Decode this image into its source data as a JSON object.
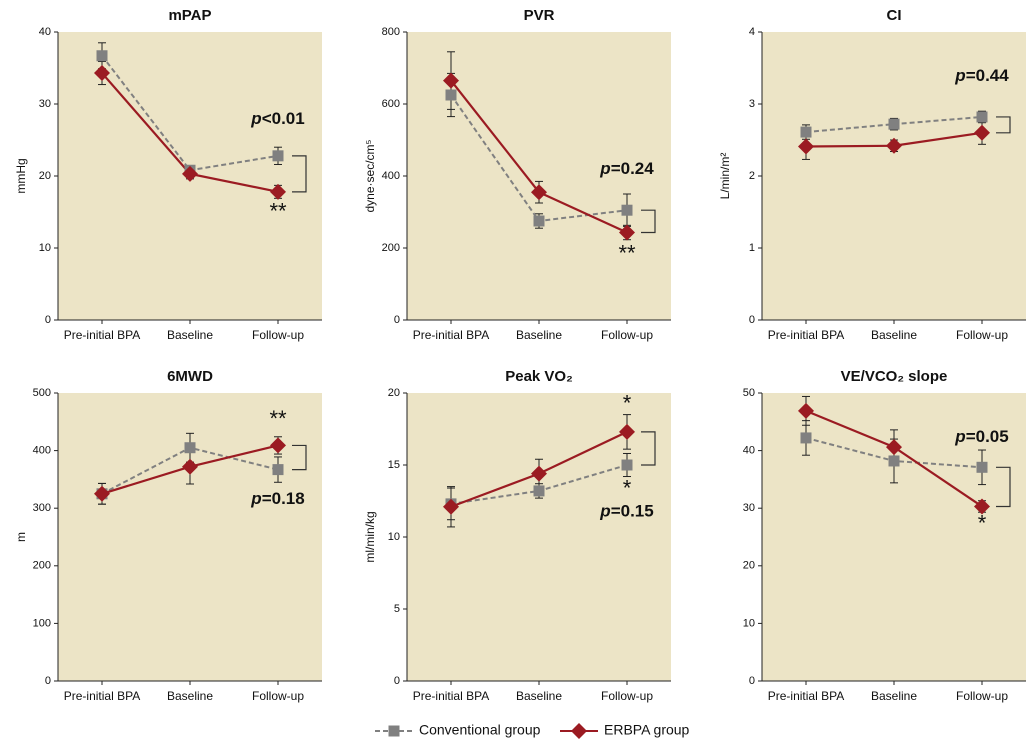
{
  "chart_data": [
    {
      "type": "line",
      "title": "mPAP",
      "y_label": "mmHg",
      "categories": [
        "Pre-initial BPA",
        "Baseline",
        "Follow-up"
      ],
      "ylim": [
        0,
        40
      ],
      "yticks": [
        0,
        10,
        20,
        30,
        40
      ],
      "series": [
        {
          "name": "Conventional group",
          "color": "#808080",
          "values": [
            36.7,
            20.8,
            22.8
          ],
          "errors": [
            1.8,
            0.6,
            1.2
          ]
        },
        {
          "name": "ERBPA group",
          "color": "#9b1b22",
          "values": [
            34.3,
            20.3,
            17.8
          ],
          "errors": [
            1.6,
            0.7,
            0.9
          ]
        }
      ],
      "annotations": [
        {
          "text": "p<0.01",
          "y": 27.8
        },
        {
          "text": "**",
          "y": 14.9
        }
      ]
    },
    {
      "type": "line",
      "title": "PVR",
      "y_label": "dyne·sec/cm⁵",
      "categories": [
        "Pre-initial BPA",
        "Baseline",
        "Follow-up"
      ],
      "ylim": [
        0,
        800
      ],
      "yticks": [
        0,
        200,
        400,
        600,
        800
      ],
      "series": [
        {
          "color": "#808080",
          "values": [
            625,
            275,
            305
          ],
          "errors": [
            60,
            20,
            45
          ]
        },
        {
          "color": "#9b1b22",
          "values": [
            665,
            355,
            243
          ],
          "errors": [
            80,
            30,
            20
          ]
        }
      ],
      "annotations": [
        {
          "text": "p=0.24",
          "y": 417
        },
        {
          "text": "**",
          "y": 181
        }
      ]
    },
    {
      "type": "line",
      "title": "CI",
      "y_label": "L/min/m²",
      "categories": [
        "Pre-initial BPA",
        "Baseline",
        "Follow-up"
      ],
      "ylim": [
        0,
        4
      ],
      "yticks": [
        0,
        1,
        2,
        3,
        4
      ],
      "series": [
        {
          "color": "#808080",
          "values": [
            2.61,
            2.72,
            2.82
          ],
          "errors": [
            0.1,
            0.08,
            0.08
          ]
        },
        {
          "color": "#9b1b22",
          "values": [
            2.41,
            2.42,
            2.6
          ],
          "errors": [
            0.18,
            0.08,
            0.16
          ]
        }
      ],
      "annotations": [
        {
          "text": "p=0.44",
          "y": 3.375
        }
      ]
    },
    {
      "type": "line",
      "title": "6MWD",
      "y_label": "m",
      "categories": [
        "Pre-initial BPA",
        "Baseline",
        "Follow-up"
      ],
      "ylim": [
        0,
        500
      ],
      "yticks": [
        0,
        100,
        200,
        300,
        400,
        500
      ],
      "series": [
        {
          "color": "#808080",
          "values": [
            325,
            405,
            367
          ],
          "errors": [
            18,
            25,
            22
          ]
        },
        {
          "color": "#9b1b22",
          "values": [
            325,
            372,
            409
          ],
          "errors": [
            18,
            30,
            15
          ]
        }
      ],
      "annotations": [
        {
          "text": "**",
          "y": 453
        },
        {
          "text": "p=0.18",
          "y": 314
        }
      ]
    },
    {
      "type": "line",
      "title": "Peak VO₂",
      "y_label": "ml/min/kg",
      "categories": [
        "Pre-initial BPA",
        "Baseline",
        "Follow-up"
      ],
      "ylim": [
        0,
        20
      ],
      "yticks": [
        0,
        5,
        10,
        15,
        20
      ],
      "series": [
        {
          "color": "#808080",
          "values": [
            12.3,
            13.2,
            15.0
          ],
          "errors": [
            1.1,
            0.5,
            0.8
          ]
        },
        {
          "color": "#9b1b22",
          "values": [
            12.1,
            14.4,
            17.3
          ],
          "errors": [
            1.4,
            1.0,
            1.2
          ]
        }
      ],
      "annotations": [
        {
          "text": "*",
          "y": 19.2
        },
        {
          "text": "*",
          "y": 13.3
        },
        {
          "text": "p=0.15",
          "y": 11.7
        }
      ]
    },
    {
      "type": "line",
      "title": "VE/VCO₂ slope",
      "categories": [
        "Pre-initial BPA",
        "Baseline",
        "Follow-up"
      ],
      "ylim": [
        0,
        50
      ],
      "yticks": [
        0,
        10,
        20,
        30,
        40,
        50
      ],
      "series": [
        {
          "color": "#808080",
          "values": [
            42.2,
            38.2,
            37.1
          ],
          "errors": [
            3,
            3.8,
            3
          ]
        },
        {
          "color": "#9b1b22",
          "values": [
            46.9,
            40.6,
            30.3
          ],
          "errors": [
            2.5,
            3,
            1
          ]
        }
      ],
      "annotations": [
        {
          "text": "p=0.05",
          "y": 42.2
        },
        {
          "text": "*",
          "y": 27.1
        }
      ]
    }
  ]
}
